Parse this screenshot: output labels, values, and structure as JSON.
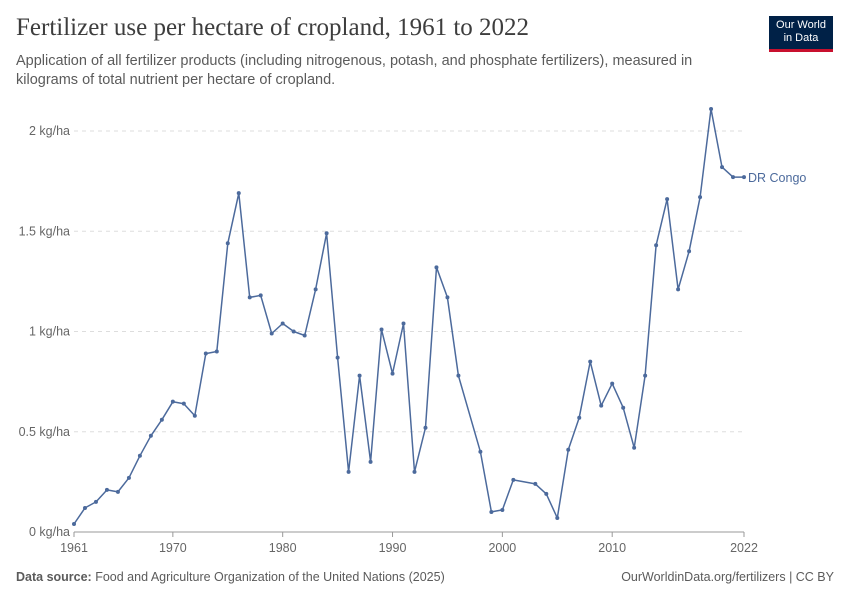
{
  "header": {
    "title": "Fertilizer use per hectare of cropland, 1961 to 2022",
    "subtitle": "Application of all fertilizer products (including nitrogenous, potash, and phosphate fertilizers), measured in kilograms of total nutrient per hectare of cropland.",
    "logo_line1": "Our World",
    "logo_line2": "in Data"
  },
  "footer": {
    "source_label": "Data source:",
    "source_text": "Food and Agriculture Organization of the United Nations (2025)",
    "link_text": "OurWorldinData.org/fertilizers | CC BY"
  },
  "colors": {
    "series": "#4c6a9c",
    "grid": "#dddddd",
    "axis_text": "#666666"
  },
  "chart_data": {
    "type": "line",
    "title": "Fertilizer use per hectare of cropland, 1961 to 2022",
    "xlabel": "",
    "ylabel": "",
    "xlim": [
      1961,
      2022
    ],
    "ylim": [
      0,
      2
    ],
    "x_ticks": [
      1961,
      1970,
      1980,
      1990,
      2000,
      2010,
      2022
    ],
    "y_ticks": [
      {
        "value": 0,
        "label": "0 kg/ha"
      },
      {
        "value": 0.5,
        "label": "0.5 kg/ha"
      },
      {
        "value": 1,
        "label": "1 kg/ha"
      },
      {
        "value": 1.5,
        "label": "1.5 kg/ha"
      },
      {
        "value": 2,
        "label": "2 kg/ha"
      }
    ],
    "grid": true,
    "series": [
      {
        "name": "DR Congo",
        "x": [
          1961,
          1962,
          1963,
          1964,
          1965,
          1966,
          1967,
          1968,
          1969,
          1970,
          1971,
          1972,
          1973,
          1974,
          1975,
          1976,
          1977,
          1978,
          1979,
          1980,
          1981,
          1982,
          1983,
          1984,
          1985,
          1986,
          1987,
          1988,
          1989,
          1990,
          1991,
          1992,
          1993,
          1994,
          1995,
          1996,
          1998,
          1999,
          2000,
          2001,
          2003,
          2004,
          2005,
          2006,
          2007,
          2008,
          2009,
          2010,
          2011,
          2012,
          2013,
          2014,
          2015,
          2016,
          2017,
          2018,
          2019,
          2020,
          2021,
          2022
        ],
        "values": [
          0.04,
          0.12,
          0.15,
          0.21,
          0.2,
          0.27,
          0.38,
          0.48,
          0.56,
          0.65,
          0.64,
          0.58,
          0.89,
          0.9,
          1.44,
          1.69,
          1.17,
          1.18,
          0.99,
          1.04,
          1.0,
          0.98,
          1.21,
          1.49,
          0.87,
          0.3,
          0.78,
          0.35,
          1.01,
          0.79,
          1.04,
          0.3,
          0.52,
          1.32,
          1.17,
          0.78,
          0.4,
          0.1,
          0.11,
          0.26,
          0.24,
          0.19,
          0.07,
          0.41,
          0.57,
          0.85,
          0.63,
          0.74,
          0.62,
          0.42,
          0.78,
          1.43,
          1.66,
          1.21,
          1.4,
          1.67,
          2.11,
          1.82,
          1.77,
          1.77
        ]
      }
    ]
  }
}
